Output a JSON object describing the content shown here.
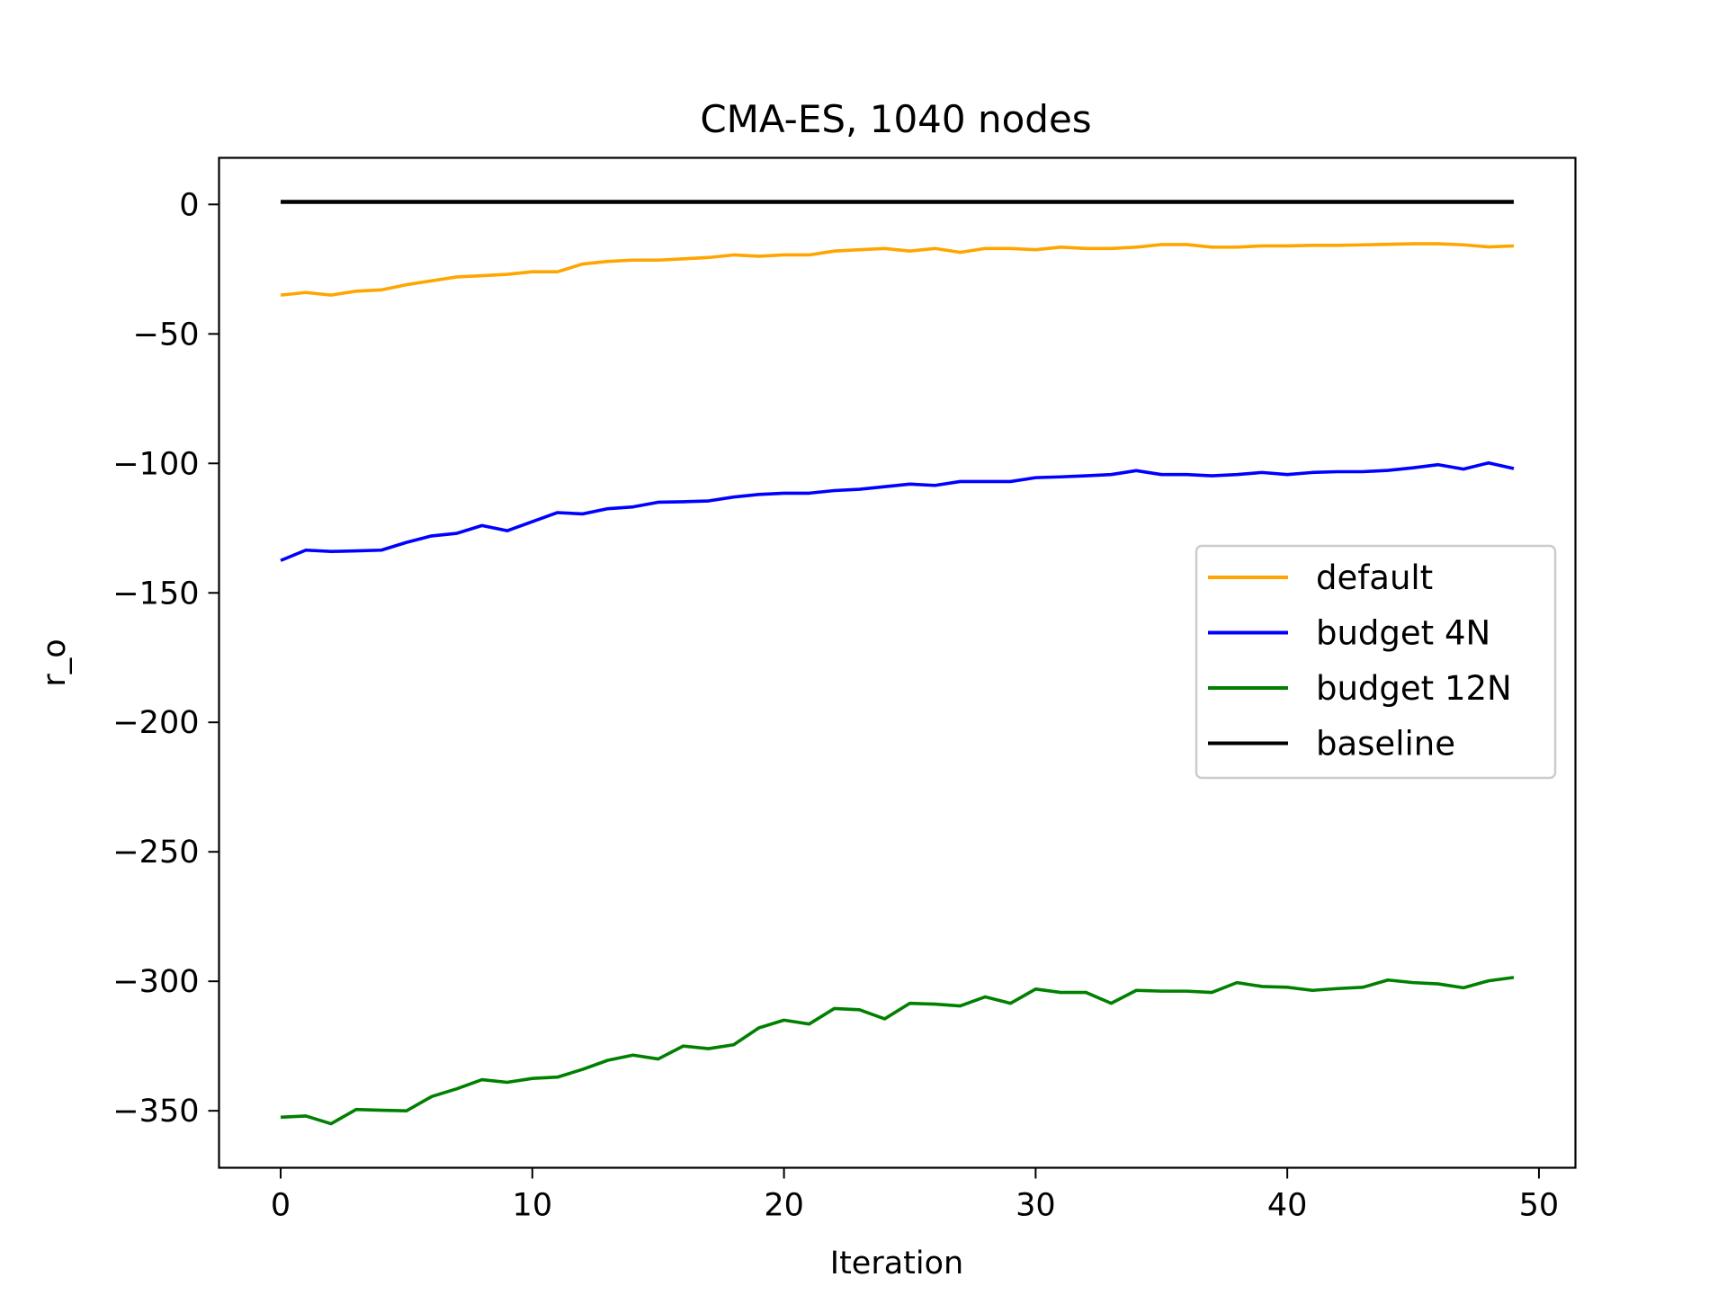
{
  "chart_data": {
    "type": "line",
    "title": "CMA-ES, 1040 nodes",
    "xlabel": "Iteration",
    "ylabel": "r_o",
    "xlim": [
      -2.45,
      51.45
    ],
    "ylim": [
      -372,
      18
    ],
    "xticks": [
      0,
      10,
      20,
      30,
      40,
      50
    ],
    "yticks": [
      0,
      -50,
      -100,
      -150,
      -200,
      -250,
      -300,
      -350
    ],
    "xtick_labels": [
      "0",
      "10",
      "20",
      "30",
      "40",
      "50"
    ],
    "ytick_labels": [
      "0",
      "−50",
      "−100",
      "−150",
      "−200",
      "−250",
      "−300",
      "−350"
    ],
    "grid": false,
    "legend_position": "center-right",
    "x": [
      0,
      1,
      2,
      3,
      4,
      5,
      6,
      7,
      8,
      9,
      10,
      11,
      12,
      13,
      14,
      15,
      16,
      17,
      18,
      19,
      20,
      21,
      22,
      23,
      24,
      25,
      26,
      27,
      28,
      29,
      30,
      31,
      32,
      33,
      34,
      35,
      36,
      37,
      38,
      39,
      40,
      41,
      42,
      43,
      44,
      45,
      46,
      47,
      48,
      49
    ],
    "series": [
      {
        "name": "default",
        "color": "#ffa500",
        "values": [
          -35,
          -34,
          -35,
          -33.5,
          -33,
          -31,
          -29.5,
          -28,
          -27.5,
          -27,
          -26,
          -26,
          -23,
          -22,
          -21.5,
          -21.5,
          -21,
          -20.5,
          -19.5,
          -20,
          -19.5,
          -19.5,
          -18,
          -17.5,
          -17,
          -18,
          -17,
          -18.5,
          -17,
          -17,
          -17.5,
          -16.5,
          -17,
          -17,
          -16.5,
          -15.5,
          -15.5,
          -16.5,
          -16.5,
          -16,
          -16,
          -15.8,
          -15.8,
          -15.6,
          -15.4,
          -15.2,
          -15.2,
          -15.6,
          -16.4,
          -16
        ]
      },
      {
        "name": "budget 4N",
        "color": "#0000ff",
        "values": [
          -137.5,
          -133.5,
          -134,
          -133.8,
          -133.5,
          -130.5,
          -128,
          -127,
          -124,
          -126,
          -122.5,
          -119,
          -119.5,
          -117.5,
          -116.8,
          -115,
          -114.8,
          -114.5,
          -113,
          -112,
          -111.5,
          -111.5,
          -110.5,
          -110,
          -109,
          -108,
          -108.5,
          -107,
          -107,
          -107,
          -105.5,
          -105.2,
          -104.8,
          -104.3,
          -102.8,
          -104.3,
          -104.3,
          -104.8,
          -104.3,
          -103.5,
          -104.3,
          -103.5,
          -103.2,
          -103.2,
          -102.7,
          -101.7,
          -100.5,
          -102.2,
          -99.8,
          -102
        ]
      },
      {
        "name": "budget 12N",
        "color": "#008000",
        "values": [
          -352.5,
          -352,
          -355,
          -349.5,
          -349.8,
          -350,
          -344.5,
          -341.5,
          -338,
          -339,
          -337.5,
          -337,
          -334,
          -330.5,
          -328.5,
          -330,
          -325,
          -326,
          -324.5,
          -318,
          -315,
          -316.5,
          -310.5,
          -311,
          -314.5,
          -308.5,
          -308.8,
          -309.5,
          -306,
          -308.5,
          -303,
          -304.3,
          -304.3,
          -308.5,
          -303.5,
          -303.8,
          -303.8,
          -304.3,
          -300.5,
          -302,
          -302.3,
          -303.5,
          -302.8,
          -302.3,
          -299.5,
          -300.5,
          -301,
          -302.5,
          -299.8,
          -298.5
        ]
      },
      {
        "name": "baseline",
        "color": "#000000",
        "values": [
          1,
          1,
          1,
          1,
          1,
          1,
          1,
          1,
          1,
          1,
          1,
          1,
          1,
          1,
          1,
          1,
          1,
          1,
          1,
          1,
          1,
          1,
          1,
          1,
          1,
          1,
          1,
          1,
          1,
          1,
          1,
          1,
          1,
          1,
          1,
          1,
          1,
          1,
          1,
          1,
          1,
          1,
          1,
          1,
          1,
          1,
          1,
          1,
          1,
          1
        ]
      }
    ]
  }
}
